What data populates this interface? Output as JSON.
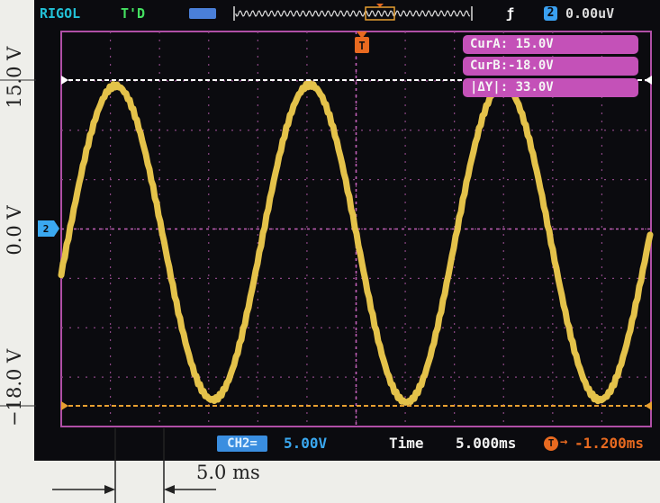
{
  "status_bar": {
    "brand": "RIGOL",
    "run_state": "T'D",
    "trigger_mode_icon": "edge-trigger-icon",
    "trigger_source": "2",
    "trigger_level": "0.00uV"
  },
  "cursors": {
    "cur_a": "CurA: 15.0V",
    "cur_b": "CurB:-18.0V",
    "delta_y": "|ΔY|: 33.0V"
  },
  "bottom_bar": {
    "channel_badge": "CH2=",
    "channel_scale": "5.00V",
    "time_label": "Time",
    "time_value": "5.000ms",
    "trigger_offset": "-1.200ms"
  },
  "annotations": {
    "volt_top": "15.0 V",
    "volt_mid": "0.0 V",
    "volt_bottom": "−18.0 V",
    "period": "5.0 ms"
  },
  "markers": {
    "trigger_marker": "T",
    "channel_marker": "2"
  },
  "colors": {
    "trace": "#e4c24a",
    "grid_border": "#b04fa6",
    "cursor_a": "#ffffff",
    "cursor_b": "#e8a030",
    "cursor_box": "#c451b8"
  }
}
